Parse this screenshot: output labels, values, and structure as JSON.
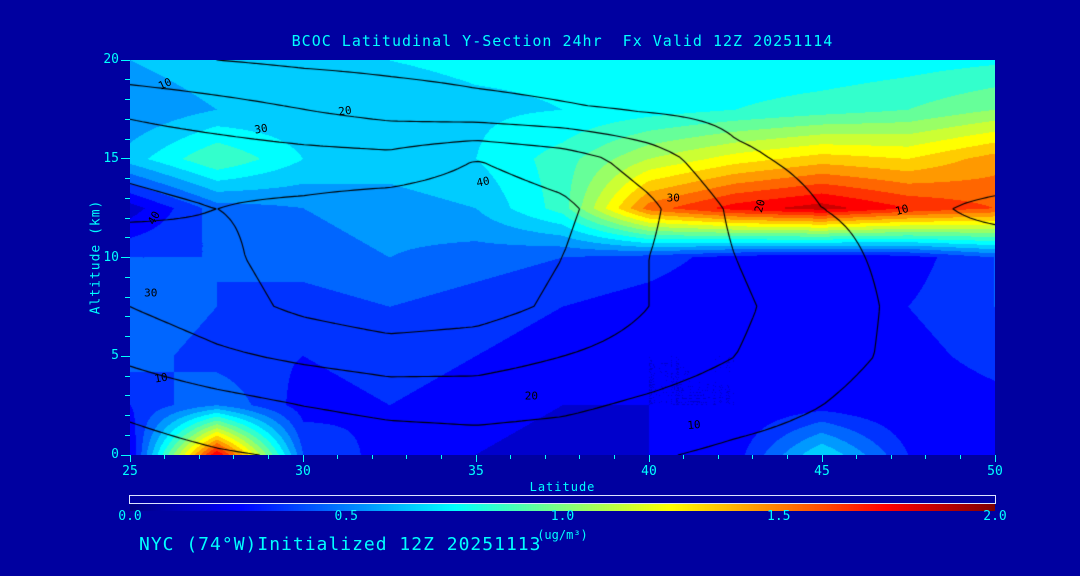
{
  "title": "BCOC Latitudinal Y-Section 24hr  Fx Valid 12Z 20251114",
  "footer": "NYC (74°W)Initialized 12Z 20251113",
  "colors": {
    "background": "#0000a0",
    "text": "#00ffff",
    "contour_line": "#000000",
    "colorbar_border": "#dde4ff"
  },
  "axes": {
    "x": {
      "label": "Latitude",
      "range": [
        25,
        50
      ],
      "ticks": [
        "25",
        "30",
        "35",
        "40",
        "45",
        "50"
      ]
    },
    "y": {
      "label": "Altitude (km)",
      "range": [
        0,
        20
      ],
      "ticks": [
        "0",
        "5",
        "10",
        "15",
        "20"
      ]
    }
  },
  "colorbar": {
    "label": "(ug/m³)",
    "range": [
      0,
      2
    ],
    "ticks": [
      "0.0",
      "0.5",
      "1.0",
      "1.5",
      "2.0"
    ],
    "colormap_stops": [
      "#000090",
      "#0000ff",
      "#00ffff",
      "#80ff80",
      "#ffff00",
      "#ff8000",
      "#ff0000",
      "#800000"
    ]
  },
  "chart_data": {
    "type": "heatmap",
    "units": "ug/m³",
    "value_range": [
      0,
      2
    ],
    "x_latitude": [
      25,
      27.5,
      30,
      32.5,
      35,
      37.5,
      40,
      42.5,
      45,
      47.5,
      50
    ],
    "y_altitude_km": [
      0,
      2.5,
      5,
      7.5,
      10,
      12.5,
      15,
      17.5,
      20
    ],
    "values": [
      [
        0.2,
        1.8,
        0.4,
        0.25,
        0.2,
        0.15,
        0.2,
        0.25,
        0.7,
        0.3,
        0.3
      ],
      [
        0.3,
        0.5,
        0.25,
        0.3,
        0.25,
        0.2,
        0.2,
        0.2,
        0.25,
        0.2,
        0.25
      ],
      [
        0.45,
        0.35,
        0.3,
        0.35,
        0.3,
        0.25,
        0.2,
        0.2,
        0.25,
        0.25,
        0.35
      ],
      [
        0.5,
        0.4,
        0.35,
        0.4,
        0.35,
        0.3,
        0.25,
        0.2,
        0.25,
        0.3,
        0.4
      ],
      [
        0.4,
        0.4,
        0.45,
        0.5,
        0.45,
        0.4,
        0.35,
        0.25,
        0.2,
        0.25,
        0.4
      ],
      [
        0.15,
        0.45,
        0.5,
        0.55,
        0.6,
        0.85,
        1.55,
        1.75,
        1.85,
        1.7,
        1.6
      ],
      [
        0.65,
        0.9,
        0.7,
        0.65,
        0.7,
        0.85,
        1.1,
        1.25,
        1.35,
        1.3,
        1.45
      ],
      [
        0.5,
        0.6,
        0.62,
        0.65,
        0.68,
        0.7,
        0.75,
        0.8,
        0.85,
        0.9,
        1.0
      ],
      [
        0.6,
        0.68,
        0.7,
        0.7,
        0.72,
        0.72,
        0.75,
        0.72,
        0.72,
        0.75,
        0.78
      ]
    ],
    "overlay_contours": {
      "levels": [
        10,
        20,
        30,
        40
      ],
      "values": [
        [
          6,
          9,
          11,
          13,
          14,
          13,
          11,
          8,
          6,
          4,
          3
        ],
        [
          12,
          16,
          20,
          23,
          24,
          22,
          18,
          14,
          10,
          6,
          4
        ],
        [
          22,
          28,
          32,
          35,
          34,
          30,
          26,
          20,
          13,
          8,
          5
        ],
        [
          30,
          36,
          42,
          46,
          44,
          38,
          30,
          22,
          14,
          8,
          5
        ],
        [
          35,
          38,
          44,
          48,
          46,
          40,
          30,
          20,
          12,
          8,
          6
        ],
        [
          42,
          40,
          42,
          45,
          46,
          42,
          32,
          18,
          10,
          8,
          12
        ],
        [
          38,
          36,
          34,
          33,
          40,
          35,
          25,
          12,
          7,
          5,
          4
        ],
        [
          28,
          24,
          20,
          16,
          13,
          11,
          9,
          7,
          5,
          4,
          3
        ],
        [
          12,
          10,
          8,
          7,
          6,
          5,
          4,
          3,
          3,
          2,
          2
        ]
      ],
      "labels": [
        {
          "text": "10",
          "lat": 26.0,
          "alt": 18.8,
          "rot": -25
        },
        {
          "text": "20",
          "lat": 31.2,
          "alt": 17.4,
          "rot": -8
        },
        {
          "text": "30",
          "lat": 28.8,
          "alt": 16.5,
          "rot": -10
        },
        {
          "text": "40",
          "lat": 35.2,
          "alt": 13.8,
          "rot": -12
        },
        {
          "text": "30",
          "lat": 40.7,
          "alt": 13.0,
          "rot": 0
        },
        {
          "text": "20",
          "lat": 43.2,
          "alt": 12.6,
          "rot": -75
        },
        {
          "text": "10",
          "lat": 47.3,
          "alt": 12.4,
          "rot": -15
        },
        {
          "text": "40",
          "lat": 25.7,
          "alt": 12.0,
          "rot": -60
        },
        {
          "text": "30",
          "lat": 25.6,
          "alt": 8.2,
          "rot": 0
        },
        {
          "text": "10",
          "lat": 25.9,
          "alt": 3.9,
          "rot": -10
        },
        {
          "text": "20",
          "lat": 36.6,
          "alt": 3.0,
          "rot": 0
        },
        {
          "text": "10",
          "lat": 41.3,
          "alt": 1.5,
          "rot": -5
        }
      ]
    }
  }
}
